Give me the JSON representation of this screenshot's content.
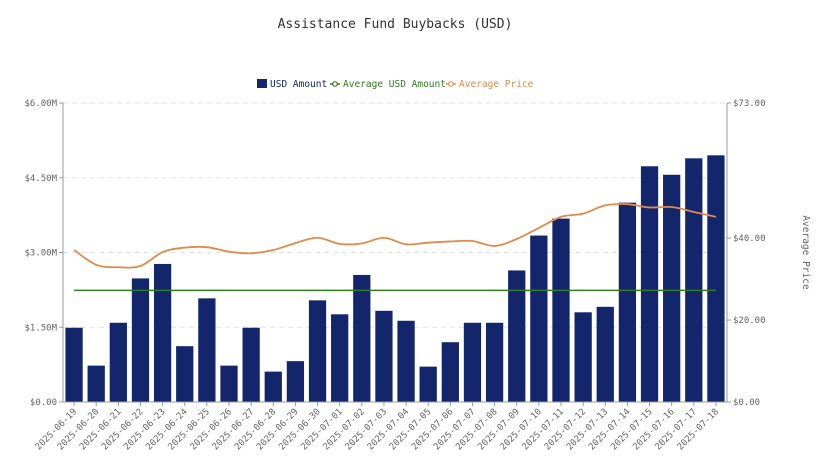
{
  "chart_data": {
    "type": "bar",
    "title": "Assistance Fund Buybacks (USD)",
    "xlabel": "",
    "ylabel": "",
    "y2label": "Average Price",
    "categories": [
      "2025-06-19",
      "2025-06-20",
      "2025-06-21",
      "2025-06-22",
      "2025-06-23",
      "2025-06-24",
      "2025-06-25",
      "2025-06-26",
      "2025-06-27",
      "2025-06-28",
      "2025-06-29",
      "2025-06-30",
      "2025-07-01",
      "2025-07-02",
      "2025-07-03",
      "2025-07-04",
      "2025-07-05",
      "2025-07-06",
      "2025-07-07",
      "2025-07-08",
      "2025-07-09",
      "2025-07-10",
      "2025-07-11",
      "2025-07-12",
      "2025-07-13",
      "2025-07-14",
      "2025-07-15",
      "2025-07-16",
      "2025-07-17",
      "2025-07-18"
    ],
    "ylim": [
      0,
      6000000
    ],
    "y2lim": [
      0,
      73
    ],
    "yticks": [
      {
        "value": 0,
        "label": "$0.00"
      },
      {
        "value": 1500000,
        "label": "$1.50M"
      },
      {
        "value": 3000000,
        "label": "$3.00M"
      },
      {
        "value": 4500000,
        "label": "$4.50M"
      },
      {
        "value": 6000000,
        "label": "$6.00M"
      }
    ],
    "y2ticks": [
      {
        "value": 0,
        "label": "$0.00"
      },
      {
        "value": 20,
        "label": "$20.00"
      },
      {
        "value": 40,
        "label": "$40.00"
      },
      {
        "value": 73,
        "label": "$73.00"
      }
    ],
    "grid": true,
    "legend_position": "top-center",
    "series": [
      {
        "name": "USD Amount",
        "kind": "bar",
        "axis": "left",
        "color": "#13266b",
        "values": [
          1490000,
          730000,
          1590000,
          2480000,
          2770000,
          1120000,
          2080000,
          730000,
          1490000,
          610000,
          820000,
          2040000,
          1760000,
          2550000,
          1830000,
          1630000,
          710000,
          1200000,
          1590000,
          1590000,
          2640000,
          3340000,
          3680000,
          1800000,
          1910000,
          4000000,
          4730000,
          4560000,
          4890000,
          4950000
        ]
      },
      {
        "name": "Average USD Amount",
        "kind": "line",
        "axis": "left",
        "color": "#2f7d1e",
        "values": [
          2240000,
          2240000,
          2240000,
          2240000,
          2240000,
          2240000,
          2240000,
          2240000,
          2240000,
          2240000,
          2240000,
          2240000,
          2240000,
          2240000,
          2240000,
          2240000,
          2240000,
          2240000,
          2240000,
          2240000,
          2240000,
          2240000,
          2240000,
          2240000,
          2240000,
          2240000,
          2240000,
          2240000,
          2240000,
          2240000
        ]
      },
      {
        "name": "Average Price",
        "kind": "line",
        "axis": "right",
        "color": "#e08a4a",
        "values": [
          37.1,
          33.5,
          32.9,
          33.2,
          36.6,
          37.7,
          37.8,
          36.7,
          36.3,
          37.1,
          38.8,
          40.1,
          38.6,
          38.7,
          40.1,
          38.5,
          38.9,
          39.2,
          39.3,
          38.1,
          39.8,
          42.5,
          45.2,
          46.0,
          48.0,
          48.3,
          47.5,
          47.6,
          46.4,
          45.2
        ]
      }
    ]
  }
}
